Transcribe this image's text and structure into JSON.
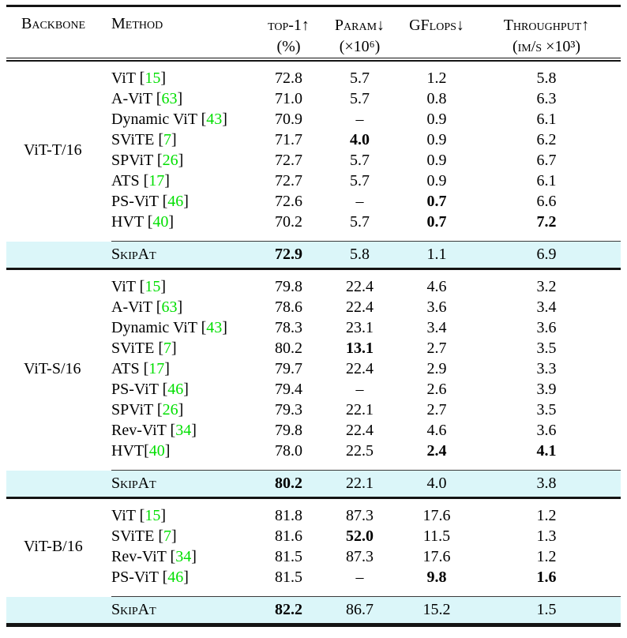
{
  "table": {
    "headers": {
      "backbone": "Backbone",
      "method": "Method",
      "top1": {
        "line1": "top-1↑",
        "line2": "(%)"
      },
      "param": {
        "line1": "Param↓",
        "line2": "(×10⁶)"
      },
      "gflops": {
        "line1": "GFlops↓",
        "line2": ""
      },
      "throughput": {
        "line1": "Throughput↑",
        "line2": "(im/s ×10³)"
      }
    },
    "ref_open": "[",
    "ref_close": "]",
    "skipat_label": "SkipAt",
    "colors": {
      "highlight": "#dbf6f9",
      "citation": "#00df00",
      "rule": "#141414"
    },
    "sections": [
      {
        "backbone": "ViT-T/16",
        "rows": [
          {
            "name": "ViT",
            "sep": " ",
            "ref": "15",
            "top1": "72.8",
            "param": "5.7",
            "gflops": "1.2",
            "tp": "5.8"
          },
          {
            "name": "A-ViT",
            "sep": " ",
            "ref": "63",
            "top1": "71.0",
            "param": "5.7",
            "gflops": "0.8",
            "tp": "6.3"
          },
          {
            "name": "Dynamic ViT",
            "sep": " ",
            "ref": "43",
            "top1": "70.9",
            "param": "–",
            "gflops": "0.9",
            "tp": "6.1"
          },
          {
            "name": "SViTE",
            "sep": " ",
            "ref": "7",
            "top1": "71.7",
            "param": {
              "v": "4.0",
              "b": true
            },
            "gflops": "0.9",
            "tp": "6.2"
          },
          {
            "name": "SPViT",
            "sep": " ",
            "ref": "26",
            "top1": "72.7",
            "param": "5.7",
            "gflops": "0.9",
            "tp": "6.7"
          },
          {
            "name": "ATS",
            "sep": " ",
            "ref": "17",
            "top1": "72.7",
            "param": "5.7",
            "gflops": "0.9",
            "tp": "6.1"
          },
          {
            "name": "PS-ViT",
            "sep": " ",
            "ref": "46",
            "top1": "72.6",
            "param": "–",
            "gflops": {
              "v": "0.7",
              "b": true
            },
            "tp": "6.6"
          },
          {
            "name": "HVT",
            "sep": " ",
            "ref": "40",
            "top1": "70.2",
            "param": "5.7",
            "gflops": {
              "v": "0.7",
              "b": true
            },
            "tp": {
              "v": "7.2",
              "b": true
            }
          }
        ],
        "skipat": {
          "top1": {
            "v": "72.9",
            "b": true
          },
          "param": "5.8",
          "gflops": "1.1",
          "tp": "6.9"
        }
      },
      {
        "backbone": "ViT-S/16",
        "rows": [
          {
            "name": "ViT",
            "sep": " ",
            "ref": "15",
            "top1": "79.8",
            "param": "22.4",
            "gflops": "4.6",
            "tp": "3.2"
          },
          {
            "name": "A-ViT",
            "sep": " ",
            "ref": "63",
            "top1": "78.6",
            "param": "22.4",
            "gflops": "3.6",
            "tp": "3.4"
          },
          {
            "name": "Dynamic ViT",
            "sep": " ",
            "ref": "43",
            "top1": "78.3",
            "param": "23.1",
            "gflops": "3.4",
            "tp": "3.6"
          },
          {
            "name": "SViTE",
            "sep": " ",
            "ref": "7",
            "top1": "80.2",
            "param": {
              "v": "13.1",
              "b": true
            },
            "gflops": "2.7",
            "tp": "3.5"
          },
          {
            "name": "ATS",
            "sep": " ",
            "ref": "17",
            "top1": "79.7",
            "param": "22.4",
            "gflops": "2.9",
            "tp": "3.3"
          },
          {
            "name": "PS-ViT",
            "sep": " ",
            "ref": "46",
            "top1": "79.4",
            "param": "–",
            "gflops": "2.6",
            "tp": "3.9"
          },
          {
            "name": "SPViT",
            "sep": " ",
            "ref": "26",
            "top1": "79.3",
            "param": "22.1",
            "gflops": "2.7",
            "tp": "3.5"
          },
          {
            "name": "Rev-ViT",
            "sep": " ",
            "ref": "34",
            "top1": "79.8",
            "param": "22.4",
            "gflops": "4.6",
            "tp": "3.6"
          },
          {
            "name": "HVT",
            "sep": "",
            "ref": "40",
            "top1": "78.0",
            "param": "22.5",
            "gflops": {
              "v": "2.4",
              "b": true
            },
            "tp": {
              "v": "4.1",
              "b": true
            }
          }
        ],
        "skipat": {
          "top1": {
            "v": "80.2",
            "b": true
          },
          "param": "22.1",
          "gflops": "4.0",
          "tp": "3.8"
        }
      },
      {
        "backbone": "ViT-B/16",
        "rows": [
          {
            "name": "ViT",
            "sep": " ",
            "ref": "15",
            "top1": "81.8",
            "param": "87.3",
            "gflops": "17.6",
            "tp": "1.2"
          },
          {
            "name": "SViTE",
            "sep": " ",
            "ref": "7",
            "top1": "81.6",
            "param": {
              "v": "52.0",
              "b": true
            },
            "gflops": "11.5",
            "tp": "1.3"
          },
          {
            "name": "Rev-ViT",
            "sep": " ",
            "ref": "34",
            "top1": "81.5",
            "param": "87.3",
            "gflops": "17.6",
            "tp": "1.2"
          },
          {
            "name": "PS-ViT",
            "sep": " ",
            "ref": "46",
            "top1": "81.5",
            "param": "–",
            "gflops": {
              "v": "9.8",
              "b": true
            },
            "tp": {
              "v": "1.6",
              "b": true
            }
          }
        ],
        "skipat": {
          "top1": {
            "v": "82.2",
            "b": true
          },
          "param": "86.7",
          "gflops": "15.2",
          "tp": "1.5"
        }
      }
    ]
  }
}
